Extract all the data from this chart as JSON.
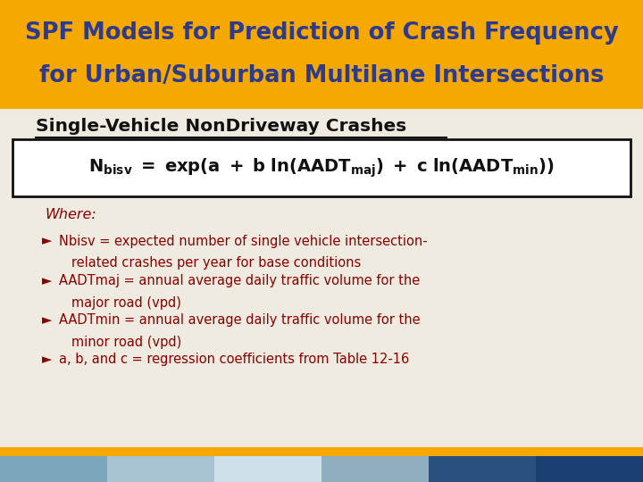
{
  "title_line1": "SPF Models for Prediction of Crash Frequency",
  "title_line2": "for Urban/Suburban Multilane Intersections",
  "title_bg": "#F5A800",
  "title_fg": "#2E3A8C",
  "body_bg": "#F0EBE0",
  "subtitle": "Single-Vehicle NonDriveway Crashes",
  "subtitle_fg": "#111111",
  "formula_fg": "#111111",
  "where_fg": "#8B0000",
  "bullet_fg": "#8B0000",
  "bullet1_l1": "Nbisv = expected number of single vehicle intersection-",
  "bullet1_l2": "   related crashes per year for base conditions",
  "bullet2_l1": "AADTmaj = annual average daily traffic volume for the",
  "bullet2_l2": "   major road (vpd)",
  "bullet3_l1": "AADTmin = annual average daily traffic volume for the",
  "bullet3_l2": "   minor road (vpd)",
  "bullet4_l1": "a, b, and c = regression coefficients from Table 12-16",
  "footer_colors": [
    "#7BA7BC",
    "#A8C4D4",
    "#D0E0EA",
    "#8FAFC0",
    "#2A5080",
    "#1A3F70"
  ],
  "gold_bar": "#F5A800"
}
